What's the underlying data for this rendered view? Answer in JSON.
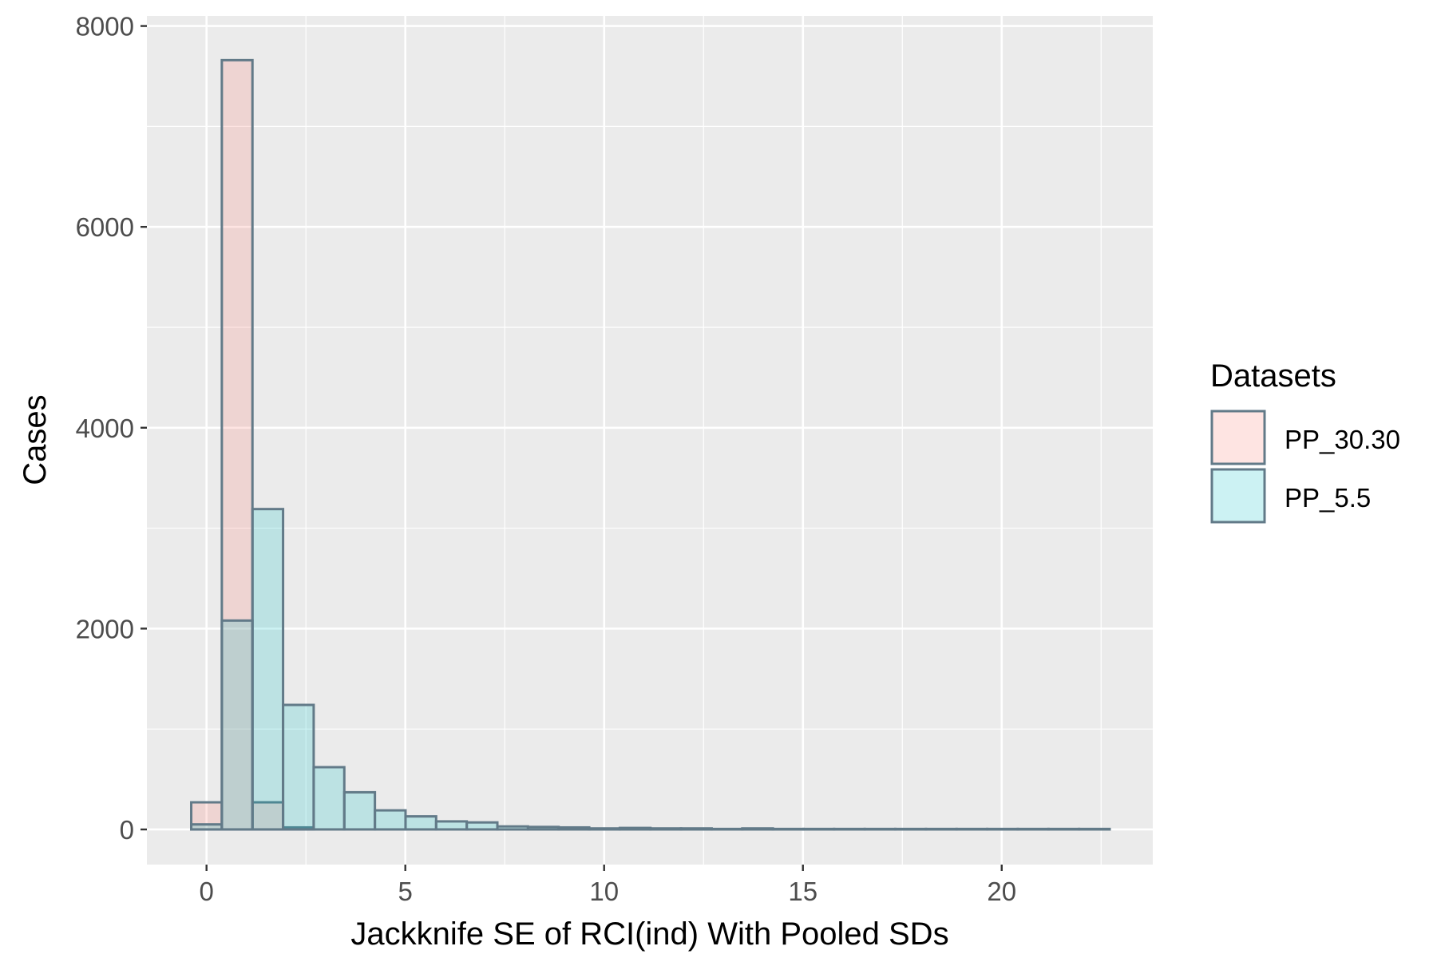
{
  "chart_data": {
    "type": "bar",
    "xlabel": "Jackknife SE of RCI(ind) With Pooled SDs",
    "ylabel": "Cases",
    "xlim": [
      -1.5,
      23.8
    ],
    "ylim": [
      -350,
      8100
    ],
    "x_ticks": [
      0,
      5,
      10,
      15,
      20
    ],
    "y_ticks": [
      0,
      2000,
      4000,
      6000,
      8000
    ],
    "x_tick_labels": [
      "0",
      "5",
      "10",
      "15",
      "20"
    ],
    "y_tick_labels": [
      "0",
      "2000",
      "4000",
      "6000",
      "8000"
    ],
    "grid": true,
    "bin_width": 0.77,
    "bin_start": -0.385,
    "legend": {
      "title": "Datasets",
      "position": "right"
    },
    "series": [
      {
        "name": "PP_30.30",
        "fill": "#f8766d",
        "values": [
          270,
          7660,
          270,
          20,
          0,
          0,
          0,
          0,
          0,
          0,
          0,
          0,
          0,
          0,
          0,
          0,
          0,
          0,
          0,
          0,
          0,
          0,
          0,
          0,
          0,
          0,
          0,
          0,
          0,
          0
        ]
      },
      {
        "name": "PP_5.5",
        "fill": "#00bfc4",
        "values": [
          50,
          2080,
          3190,
          1240,
          620,
          370,
          190,
          130,
          80,
          70,
          30,
          25,
          20,
          10,
          15,
          10,
          10,
          5,
          10,
          5,
          5,
          5,
          5,
          5,
          5,
          5,
          5,
          5,
          5,
          5
        ]
      }
    ],
    "colors": {
      "panel_bg": "#ebebeb",
      "grid": "#ffffff",
      "bar_outline": "#627a88",
      "text": "#000000",
      "tick_text": "#4d4d4d"
    }
  }
}
